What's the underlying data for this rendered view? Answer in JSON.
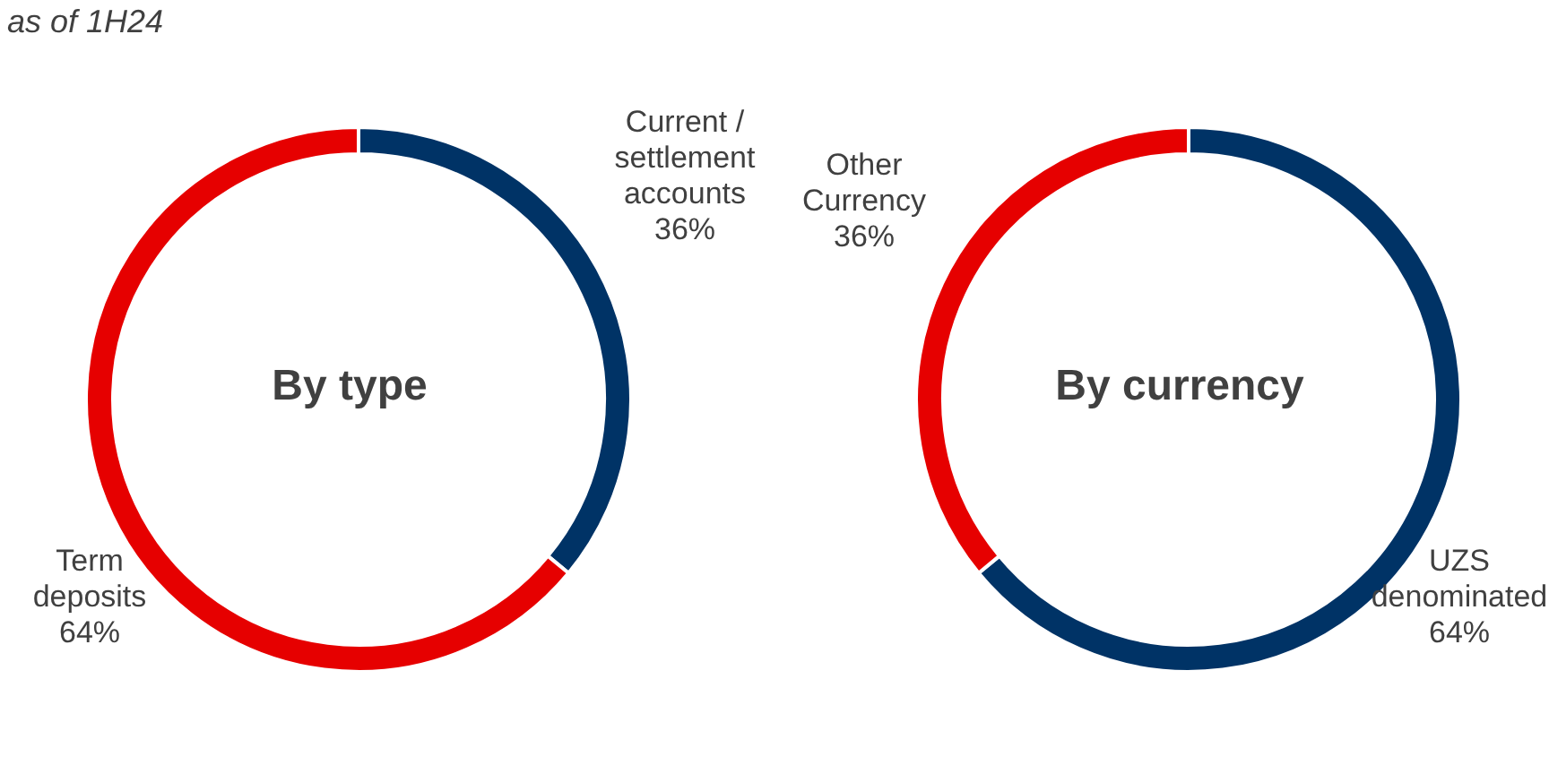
{
  "chart_data": [
    {
      "type": "donut",
      "subtitle": "as of 1H24",
      "title": "By type",
      "categories": [
        "Current / settlement accounts",
        "Term deposits"
      ],
      "values": [
        36,
        64
      ],
      "colors": [
        "#003366",
        "#e60000"
      ],
      "value_labels": [
        "36%",
        "64%"
      ]
    },
    {
      "type": "donut",
      "title": "By currency",
      "categories": [
        "UZS denominated",
        "Other Currency"
      ],
      "values": [
        64,
        36
      ],
      "colors": [
        "#003366",
        "#e60000"
      ],
      "value_labels": [
        "64%",
        "36%"
      ]
    }
  ]
}
